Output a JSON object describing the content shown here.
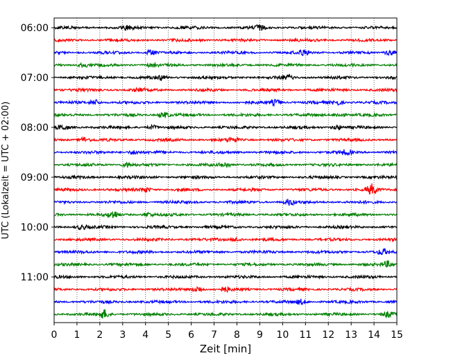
{
  "chart_data": {
    "type": "line",
    "title": "",
    "xlabel": "Zeit  [min]",
    "ylabel": "UTC (Lokalzeit = UTC + 02:00)",
    "xlim": [
      0,
      15
    ],
    "x_ticks": [
      "0",
      "1",
      "2",
      "3",
      "4",
      "5",
      "6",
      "7",
      "8",
      "9",
      "10",
      "11",
      "12",
      "13",
      "14",
      "15"
    ],
    "y_ticks": [
      "06:00",
      "07:00",
      "08:00",
      "09:00",
      "10:00",
      "11:00"
    ],
    "grid": "vertical dotted lines at each minute",
    "trace_interval_min": 15,
    "trace_color_cycle": [
      "#000000",
      "#ff0000",
      "#0000ff",
      "#008000"
    ],
    "series": [
      {
        "start": "06:00",
        "color": "#000000",
        "events": [
          [
            3.2,
            1.4
          ],
          [
            9.0,
            1.3
          ]
        ]
      },
      {
        "start": "06:15",
        "color": "#ff0000",
        "events": []
      },
      {
        "start": "06:30",
        "color": "#0000ff",
        "events": [
          [
            4.2,
            1.6
          ],
          [
            10.9,
            1.8
          ],
          [
            14.7,
            1.6
          ]
        ]
      },
      {
        "start": "06:45",
        "color": "#008000",
        "events": [
          [
            1.3,
            1.4
          ],
          [
            4.3,
            1.3
          ]
        ]
      },
      {
        "start": "07:00",
        "color": "#000000",
        "events": [
          [
            4.7,
            1.3
          ],
          [
            10.2,
            1.4
          ]
        ]
      },
      {
        "start": "07:15",
        "color": "#ff0000",
        "events": [
          [
            3.7,
            1.4
          ]
        ]
      },
      {
        "start": "07:30",
        "color": "#0000ff",
        "events": [
          [
            1.8,
            1.7
          ],
          [
            9.7,
            1.8
          ],
          [
            12.4,
            1.5
          ]
        ]
      },
      {
        "start": "07:45",
        "color": "#008000",
        "events": [
          [
            4.8,
            1.9
          ],
          [
            12.5,
            1.4
          ]
        ]
      },
      {
        "start": "08:00",
        "color": "#000000",
        "events": [
          [
            0.4,
            1.4
          ],
          [
            4.3,
            1.3
          ],
          [
            12.4,
            1.4
          ]
        ]
      },
      {
        "start": "08:15",
        "color": "#ff0000",
        "events": [
          [
            1.3,
            1.5
          ],
          [
            7.8,
            1.4
          ]
        ]
      },
      {
        "start": "08:30",
        "color": "#0000ff",
        "events": [
          [
            3.5,
            1.3
          ],
          [
            12.8,
            1.5
          ]
        ]
      },
      {
        "start": "08:45",
        "color": "#008000",
        "events": [
          [
            3.2,
            1.4
          ],
          [
            7.5,
            1.7
          ]
        ]
      },
      {
        "start": "09:00",
        "color": "#000000",
        "events": []
      },
      {
        "start": "09:15",
        "color": "#ff0000",
        "events": [
          [
            4.0,
            1.5
          ],
          [
            13.9,
            3.2
          ]
        ]
      },
      {
        "start": "09:30",
        "color": "#0000ff",
        "events": [
          [
            10.3,
            1.8
          ]
        ]
      },
      {
        "start": "09:45",
        "color": "#008000",
        "events": [
          [
            2.6,
            2.2
          ],
          [
            4.1,
            1.3
          ]
        ]
      },
      {
        "start": "10:00",
        "color": "#000000",
        "events": [
          [
            1.2,
            1.3
          ]
        ]
      },
      {
        "start": "10:15",
        "color": "#ff0000",
        "events": [
          [
            8.0,
            1.3
          ]
        ]
      },
      {
        "start": "10:30",
        "color": "#0000ff",
        "events": [
          [
            14.4,
            1.6
          ]
        ]
      },
      {
        "start": "10:45",
        "color": "#008000",
        "events": [
          [
            14.6,
            1.8
          ]
        ]
      },
      {
        "start": "11:00",
        "color": "#000000",
        "events": []
      },
      {
        "start": "11:15",
        "color": "#ff0000",
        "events": [
          [
            6.3,
            2.0
          ],
          [
            7.5,
            1.4
          ]
        ]
      },
      {
        "start": "11:30",
        "color": "#0000ff",
        "events": [
          [
            10.8,
            1.5
          ]
        ]
      },
      {
        "start": "11:45",
        "color": "#008000",
        "events": [
          [
            2.2,
            2.8
          ],
          [
            14.6,
            1.5
          ]
        ]
      }
    ]
  }
}
